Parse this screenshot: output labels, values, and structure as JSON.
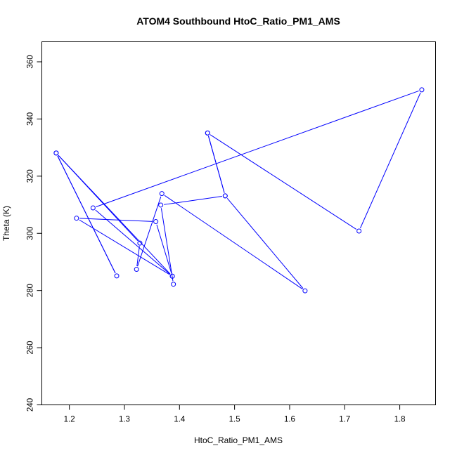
{
  "chart_data": {
    "type": "line",
    "title": "ATOM4 Southbound HtoC_Ratio_PM1_AMS",
    "xlabel": "HtoC_Ratio_PM1_AMS",
    "ylabel": "Theta (K)",
    "xlim": [
      1.15,
      1.865
    ],
    "ylim": [
      240,
      367
    ],
    "x_ticks": [
      1.2,
      1.3,
      1.4,
      1.5,
      1.6,
      1.7,
      1.8
    ],
    "x_tick_labels": [
      "1.2",
      "1.3",
      "1.4",
      "1.5",
      "1.6",
      "1.7",
      "1.8"
    ],
    "y_ticks": [
      240,
      260,
      280,
      300,
      320,
      340,
      360
    ],
    "y_tick_labels": [
      "240",
      "260",
      "280",
      "300",
      "320",
      "340",
      "360"
    ],
    "grid": false,
    "marker": "open-circle",
    "series": [
      {
        "color": "#0000ff",
        "points": [
          [
            1.451,
            335.1
          ],
          [
            1.726,
            300.8
          ],
          [
            1.84,
            350.2
          ],
          [
            1.243,
            308.9
          ],
          [
            1.387,
            285.0
          ],
          [
            1.213,
            305.3
          ],
          [
            1.357,
            304.1
          ],
          [
            1.387,
            285.0
          ],
          [
            1.176,
            328.1
          ],
          [
            1.286,
            285.1
          ],
          [
            1.176,
            328.1
          ],
          [
            1.328,
            296.6
          ],
          [
            1.322,
            287.4
          ],
          [
            1.368,
            313.9
          ],
          [
            1.628,
            279.9
          ],
          [
            1.483,
            313.1
          ],
          [
            1.451,
            335.1
          ],
          [
            1.483,
            313.1
          ],
          [
            1.366,
            309.9
          ],
          [
            1.389,
            282.2
          ]
        ]
      }
    ]
  }
}
